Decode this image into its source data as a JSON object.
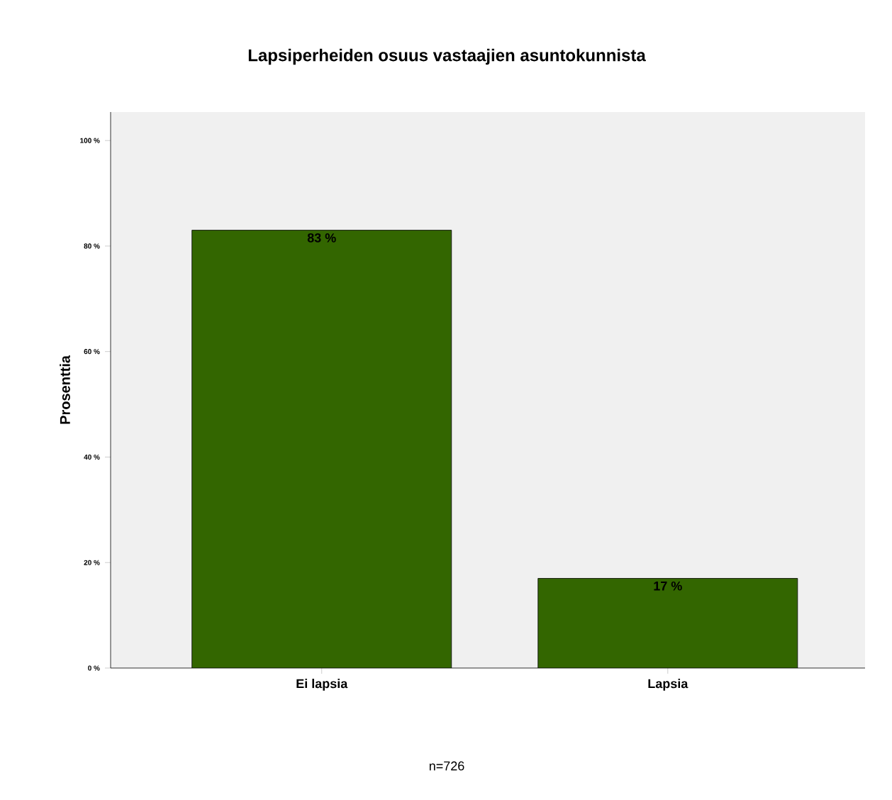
{
  "chart_data": {
    "type": "bar",
    "title": "Lapsiperheiden osuus vastaajien asuntokunnista",
    "ylabel": "Prosenttia",
    "categories": [
      "Ei lapsia",
      "Lapsia"
    ],
    "values": [
      83,
      17
    ],
    "value_labels": [
      "83 %",
      "17 %"
    ],
    "color": "#336600",
    "ylim": [
      0,
      105.4
    ],
    "yticks": [
      {
        "value": 0,
        "label": "0 %"
      },
      {
        "value": 20,
        "label": "20 %"
      },
      {
        "value": 40,
        "label": "40 %"
      },
      {
        "value": 60,
        "label": "60 %"
      },
      {
        "value": 80,
        "label": "80 %"
      },
      {
        "value": 100,
        "label": "100 %"
      }
    ],
    "grid": false,
    "annotations": [
      "n=726"
    ]
  }
}
